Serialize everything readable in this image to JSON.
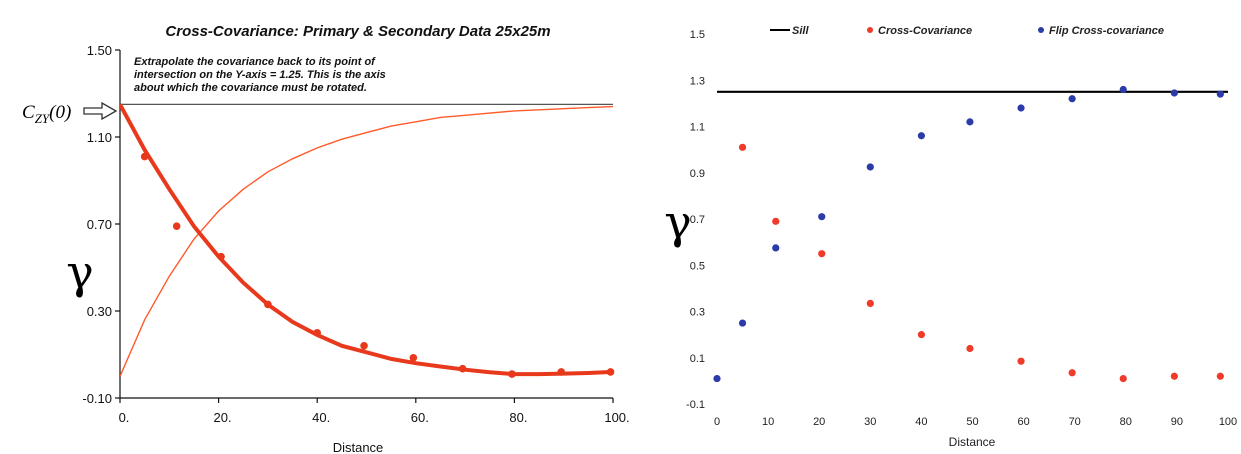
{
  "chart_data": [
    {
      "type": "scatter",
      "title": "Cross-Covariance: Primary & Secondary Data 25x25m",
      "annotation": [
        "Extrapolate the covariance back to its point of",
        "intersection on the Y-axis = 1.25. This is the axis",
        "about which the covariance must be rotated."
      ],
      "origin_label": "C",
      "origin_label_sub": "ZY",
      "origin_label_arg": "(0)",
      "xlabel": "Distance",
      "ylabel": "γ",
      "xlim": [
        0,
        100
      ],
      "ylim": [
        -0.1,
        1.5
      ],
      "x_ticks": [
        0,
        20,
        40,
        60,
        80,
        100
      ],
      "x_tick_labels": [
        "0.",
        "20.",
        "40.",
        "60.",
        "80.",
        "100."
      ],
      "y_ticks": [
        -0.1,
        0.3,
        0.7,
        1.1,
        1.5
      ],
      "y_tick_labels": [
        "-0.10",
        "0.30",
        "0.70",
        "1.10",
        "1.50"
      ],
      "sill": 1.25,
      "colors": {
        "points": "#e8391d",
        "model": "#e8391d",
        "flip": "#ff5a2a",
        "sill": "#555555",
        "arrow": "#333333"
      },
      "series": [
        {
          "kind": "points",
          "x": [
            5,
            11.5,
            20.5,
            30,
            40,
            49.5,
            59.5,
            69.5,
            79.5,
            89.5,
            99.5
          ],
          "y": [
            1.01,
            0.69,
            0.55,
            0.33,
            0.2,
            0.14,
            0.085,
            0.035,
            0.01,
            0.02,
            0.02
          ]
        },
        {
          "kind": "model-fit",
          "x": [
            0,
            5,
            10,
            15,
            20,
            25,
            30,
            35,
            40,
            45,
            50,
            55,
            60,
            65,
            70,
            75,
            80,
            85,
            90,
            95,
            100
          ],
          "y": [
            1.25,
            1.04,
            0.86,
            0.69,
            0.55,
            0.43,
            0.33,
            0.25,
            0.19,
            0.14,
            0.11,
            0.08,
            0.06,
            0.045,
            0.03,
            0.018,
            0.01,
            0.01,
            0.012,
            0.015,
            0.02
          ]
        },
        {
          "kind": "flipped-model",
          "x": [
            0,
            5,
            10,
            15,
            20,
            25,
            30,
            35,
            40,
            45,
            50,
            55,
            60,
            65,
            70,
            75,
            80,
            85,
            90,
            95,
            100
          ],
          "y": [
            0.0,
            0.26,
            0.46,
            0.63,
            0.76,
            0.86,
            0.94,
            1.0,
            1.05,
            1.09,
            1.12,
            1.15,
            1.17,
            1.19,
            1.2,
            1.21,
            1.22,
            1.225,
            1.23,
            1.235,
            1.24
          ]
        }
      ]
    },
    {
      "type": "scatter",
      "xlabel": "Distance",
      "ylabel": "γ",
      "xlim": [
        0,
        100
      ],
      "ylim": [
        -0.1,
        1.5
      ],
      "x_ticks": [
        0,
        10,
        20,
        30,
        40,
        50,
        60,
        70,
        80,
        90,
        100
      ],
      "x_tick_labels": [
        "0",
        "10",
        "20",
        "30",
        "40",
        "50",
        "60",
        "70",
        "80",
        "90",
        "100"
      ],
      "y_ticks": [
        -0.1,
        0.1,
        0.3,
        0.5,
        0.7,
        0.9,
        1.1,
        1.3,
        1.5
      ],
      "y_tick_labels": [
        "-0.1",
        "0.1",
        "0.3",
        "0.5",
        "0.7",
        "0.9",
        "1.1",
        "1.3",
        "1.5"
      ],
      "legend_position": "top",
      "sill": 1.25,
      "series": [
        {
          "name": "Sill",
          "kind": "line",
          "color": "#000000"
        },
        {
          "name": "Cross-Covariance",
          "kind": "points",
          "color": "#f03a2a",
          "x": [
            5,
            11.5,
            20.5,
            30,
            40,
            49.5,
            59.5,
            69.5,
            79.5,
            89.5,
            98.5
          ],
          "y": [
            1.01,
            0.69,
            0.55,
            0.335,
            0.2,
            0.14,
            0.085,
            0.035,
            0.01,
            0.02,
            0.02
          ]
        },
        {
          "name": "Flip Cross-covariance",
          "kind": "points",
          "color": "#2b3ba8",
          "x": [
            0,
            5,
            11.5,
            20.5,
            30,
            40,
            49.5,
            59.5,
            69.5,
            79.5,
            89.5,
            98.5
          ],
          "y": [
            0.01,
            0.25,
            0.575,
            0.71,
            0.925,
            1.06,
            1.12,
            1.18,
            1.22,
            1.26,
            1.245,
            1.24
          ]
        }
      ]
    }
  ]
}
